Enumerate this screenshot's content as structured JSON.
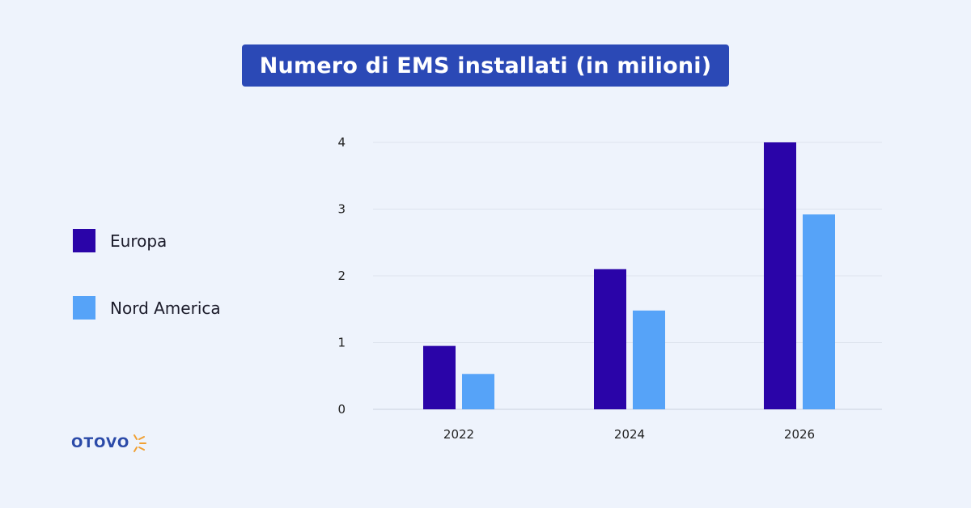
{
  "title": "Numero di EMS installati (in milioni)",
  "colors": {
    "background": "#eef3fc",
    "title_bg": "#2b49b6",
    "europa": "#2a04a8",
    "nord_america": "#56a3f8",
    "logo": "#2b4aa8",
    "logo_burst": "#f0a033"
  },
  "legend": [
    {
      "label": "Europa",
      "color": "#2a04a8"
    },
    {
      "label": "Nord America",
      "color": "#56a3f8"
    }
  ],
  "logo": {
    "text": "OTOVO",
    "icon": "sun-burst-icon"
  },
  "chart_data": {
    "type": "bar",
    "title": "Numero di EMS installati (in milioni)",
    "categories": [
      "2022",
      "2024",
      "2026"
    ],
    "series": [
      {
        "name": "Europa",
        "values": [
          0.95,
          2.1,
          4.0
        ]
      },
      {
        "name": "Nord America",
        "values": [
          0.53,
          1.48,
          2.92
        ]
      }
    ],
    "yticks": [
      0,
      1,
      2,
      3,
      4
    ],
    "ylim": [
      0,
      4
    ],
    "xlabel": "",
    "ylabel": "",
    "grid": true,
    "legend_position": "left"
  }
}
